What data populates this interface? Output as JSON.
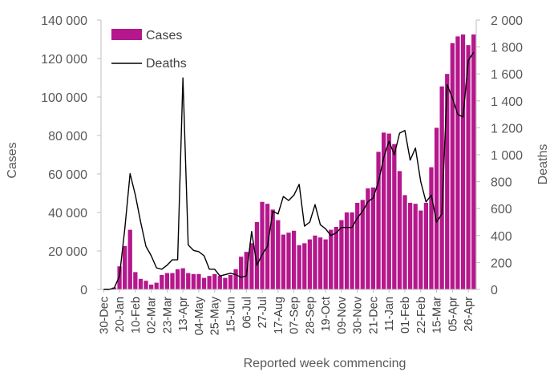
{
  "colors": {
    "cases": "#B5178C",
    "deaths": "#000000",
    "axis": "#bfbfbf",
    "text": "#595959"
  },
  "chart_data": {
    "type": "bar+line",
    "title": "",
    "xlabel": "Reported week commencing",
    "ylabel_left": "Cases",
    "ylabel_right": "Deaths",
    "ylim_left": [
      0,
      140000
    ],
    "ylim_right": [
      0,
      2000
    ],
    "yticks_left": [
      "0",
      "20 000",
      "40 000",
      "60 000",
      "80 000",
      "100 000",
      "120 000",
      "140 000"
    ],
    "yticks_right": [
      "0",
      "200",
      "400",
      "600",
      "800",
      "1 000",
      "1 200",
      "1 400",
      "1 600",
      "1 800",
      "2 000"
    ],
    "legend": {
      "position": "top-left",
      "entries": [
        "Cases",
        "Deaths"
      ]
    },
    "x_tick_labels": [
      "30-Dec",
      "20-Jan",
      "10-Feb",
      "02-Mar",
      "23-Mar",
      "13-Apr",
      "04-May",
      "25-May",
      "15-Jun",
      "06-Jul",
      "27-Jul",
      "17-Aug",
      "07-Sep",
      "28-Sep",
      "19-Oct",
      "09-Nov",
      "30-Nov",
      "21-Dec",
      "11-Jan",
      "01-Feb",
      "22-Feb",
      "15-Mar",
      "05-Apr",
      "26-Apr"
    ],
    "series": [
      {
        "name": "Cases",
        "type": "bar",
        "axis": "left",
        "values": [
          0,
          100,
          1000,
          12000,
          22500,
          31000,
          9000,
          5500,
          4500,
          2500,
          3500,
          7500,
          8500,
          8500,
          10500,
          11000,
          8500,
          8000,
          8000,
          6000,
          7000,
          8000,
          7000,
          6000,
          7500,
          10500,
          17000,
          19500,
          24000,
          35000,
          45500,
          44500,
          41500,
          36000,
          28500,
          29500,
          30500,
          23000,
          24000,
          26000,
          28000,
          27000,
          26000,
          31000,
          32500,
          36000,
          40000,
          40000,
          45000,
          46500,
          52500,
          53000,
          71500,
          81500,
          81000,
          75500,
          61500,
          49000,
          45000,
          44500,
          41000,
          45000,
          63500,
          84000,
          105500,
          112000,
          128000,
          131500,
          132500,
          127000,
          132500
        ]
      },
      {
        "name": "Deaths",
        "type": "line",
        "axis": "right",
        "values": [
          0,
          0,
          10,
          100,
          450,
          860,
          700,
          500,
          320,
          250,
          160,
          150,
          180,
          220,
          220,
          1570,
          330,
          290,
          280,
          250,
          150,
          150,
          100,
          110,
          120,
          110,
          90,
          100,
          430,
          180,
          260,
          320,
          580,
          560,
          690,
          660,
          700,
          780,
          470,
          500,
          630,
          480,
          450,
          400,
          420,
          460,
          460,
          460,
          530,
          580,
          650,
          680,
          800,
          980,
          1100,
          1000,
          1160,
          1180,
          960,
          1050,
          800,
          650,
          700,
          500,
          560,
          1520,
          1420,
          1300,
          1280,
          1700,
          1760
        ]
      }
    ]
  }
}
